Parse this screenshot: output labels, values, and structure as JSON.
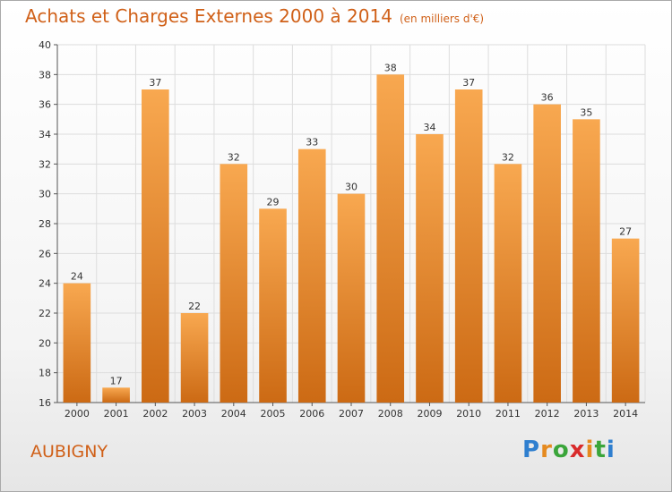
{
  "title": "Achats et Charges Externes 2000 à 2014",
  "unit_note": "(en milliers d'€)",
  "commune": "AUBIGNY",
  "logo": {
    "text": "Proxiti",
    "letter_colors": [
      "#2f7fcf",
      "#e58a1f",
      "#3aa53a",
      "#d92b2b",
      "#e58a1f",
      "#3aa53a",
      "#2f7fcf"
    ]
  },
  "colors": {
    "bar_top": "#f8a850",
    "bar_bottom": "#cc6a14",
    "title": "#d06018",
    "grid": "#dddddd"
  },
  "chart_data": {
    "type": "bar",
    "categories": [
      "2000",
      "2001",
      "2002",
      "2003",
      "2004",
      "2005",
      "2006",
      "2007",
      "2008",
      "2009",
      "2010",
      "2011",
      "2012",
      "2013",
      "2014"
    ],
    "values": [
      24,
      17,
      37,
      22,
      32,
      29,
      33,
      30,
      38,
      34,
      37,
      32,
      36,
      35,
      27
    ],
    "ylim": [
      16,
      40
    ],
    "yticks": [
      16,
      18,
      20,
      22,
      24,
      26,
      28,
      30,
      32,
      34,
      36,
      38,
      40
    ],
    "grid": true,
    "legend": "none"
  }
}
